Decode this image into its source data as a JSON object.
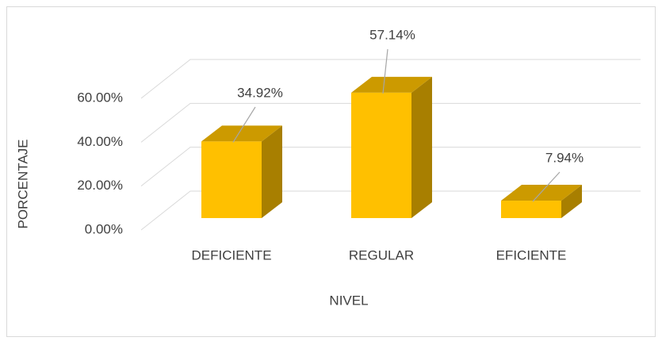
{
  "chart_data": {
    "type": "bar3d",
    "categories": [
      "DEFICIENTE",
      "REGULAR",
      "EFICIENTE"
    ],
    "values": [
      34.92,
      57.14,
      7.94
    ],
    "value_labels": [
      "34.92%",
      "57.14%",
      "7.94%"
    ],
    "color": "#ffc000",
    "ylim": [
      0,
      60
    ],
    "yticks": [
      {
        "value": 0,
        "label": "0.00%"
      },
      {
        "value": 20,
        "label": "20.00%"
      },
      {
        "value": 40,
        "label": "40.00%"
      },
      {
        "value": 60,
        "label": "60.00%"
      }
    ],
    "y_label": "PORCENTAJE",
    "x_label": "NIVEL",
    "grid": true
  }
}
